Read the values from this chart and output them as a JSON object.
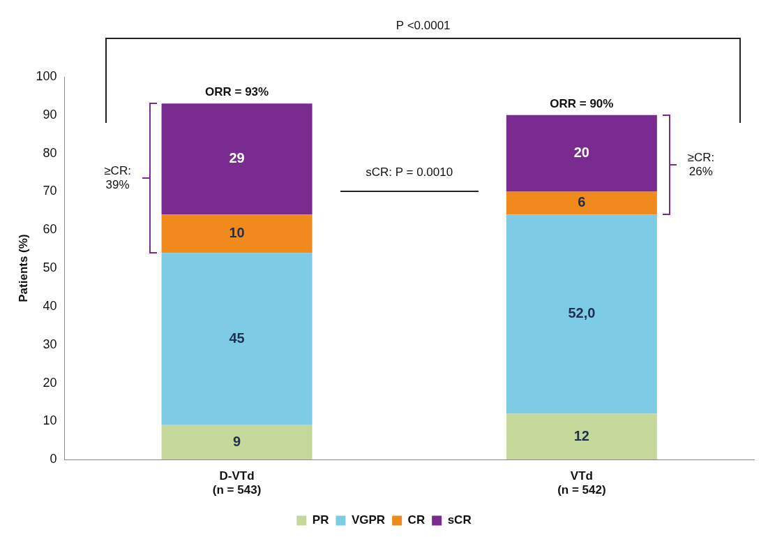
{
  "chart_data": {
    "type": "bar",
    "stacked": true,
    "categories": [
      "D-VTd\n(n = 543)",
      "VTd\n(n = 542)"
    ],
    "series": [
      {
        "name": "PR",
        "color": "#c5d89a",
        "values": [
          9,
          12
        ],
        "value_labels": [
          "9",
          "12"
        ]
      },
      {
        "name": "VGPR",
        "color": "#7ecbe6",
        "values": [
          45,
          52
        ],
        "value_labels": [
          "45",
          "52,0"
        ]
      },
      {
        "name": "CR",
        "color": "#f18a1c",
        "values": [
          10,
          6
        ],
        "value_labels": [
          "10",
          "6"
        ]
      },
      {
        "name": "sCR",
        "color": "#7a2b8f",
        "values": [
          29,
          20
        ],
        "value_labels": [
          "29",
          "20"
        ]
      }
    ],
    "ylabel": "Patients (%)",
    "ylim": [
      0,
      100
    ],
    "yticks": [
      0,
      10,
      20,
      30,
      40,
      50,
      60,
      70,
      80,
      90,
      100
    ],
    "grid": false,
    "legend": "bottom",
    "annotations": [
      "P <0.0001",
      "sCR: P = 0.0010",
      {
        "text": "ORR = 93%",
        "x": "D-VTd\n(n = 543)",
        "y": 93
      },
      {
        "text": "ORR = 90%",
        "x": "VTd\n(n = 542)",
        "y": 90
      },
      "≥CR:\n39%",
      "≥CR:\n26%"
    ]
  }
}
